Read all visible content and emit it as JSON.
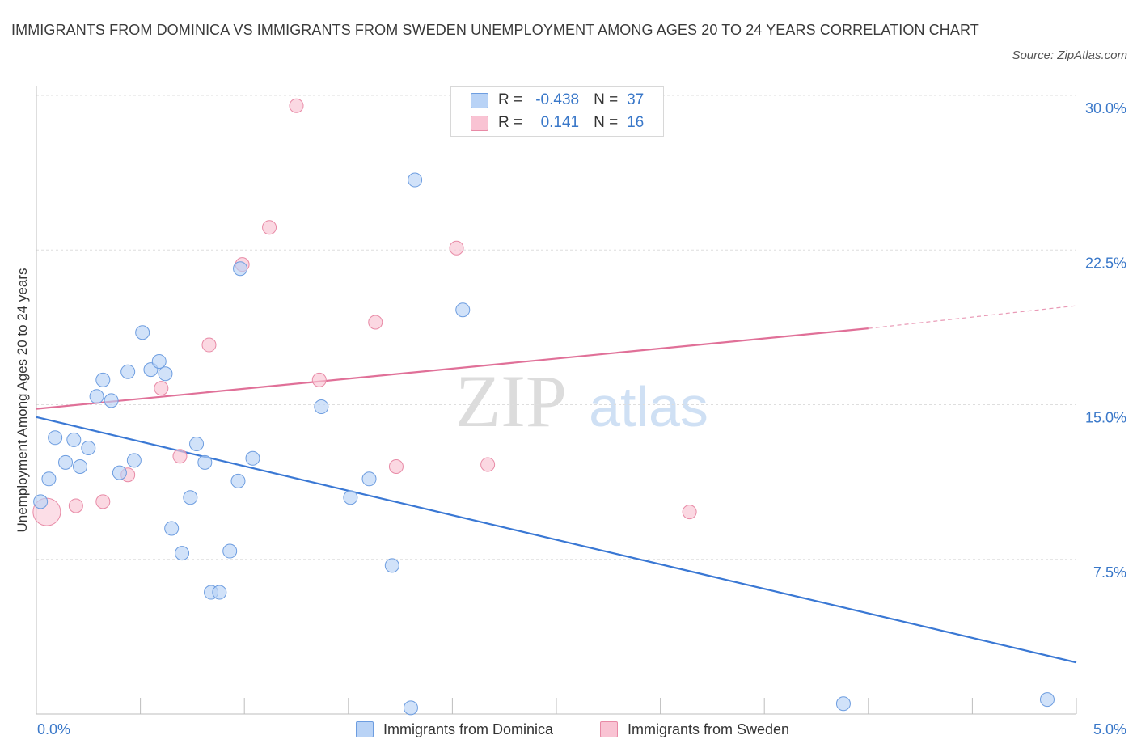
{
  "title": "IMMIGRANTS FROM DOMINICA VS IMMIGRANTS FROM SWEDEN UNEMPLOYMENT AMONG AGES 20 TO 24 YEARS CORRELATION CHART",
  "source": "Source: ZipAtlas.com",
  "watermark": {
    "zip": "ZIP",
    "atlas": "atlas"
  },
  "legend": {
    "r_label": "R =",
    "n_label": "N =",
    "series": [
      {
        "name": "Immigrants from Dominica",
        "r": "-0.438",
        "n": "37",
        "fill": "#b9d3f6",
        "stroke": "#6d9de0"
      },
      {
        "name": "Immigrants from Sweden",
        "r": "0.141",
        "n": "16",
        "fill": "#f9c3d3",
        "stroke": "#e88aa6"
      }
    ]
  },
  "chart_data": {
    "type": "scatter",
    "title": "IMMIGRANTS FROM DOMINICA VS IMMIGRANTS FROM SWEDEN UNEMPLOYMENT AMONG AGES 20 TO 24 YEARS CORRELATION CHART",
    "xlabel": "",
    "ylabel": "Unemployment Among Ages 20 to 24 years",
    "xlim": [
      0,
      5
    ],
    "ylim": [
      0,
      30
    ],
    "x_tick_labels": [
      "0.0%",
      "5.0%"
    ],
    "y_ticks": [
      7.5,
      15,
      22.5,
      30
    ],
    "y_tick_labels": [
      "7.5%",
      "15.0%",
      "22.5%",
      "30.0%"
    ],
    "grid": true,
    "colors": {
      "dominica": "#3a78d4",
      "sweden": "#e07098",
      "axis_text": "#3a78c9"
    },
    "series": [
      {
        "name": "Immigrants from Dominica",
        "points": [
          [
            0.02,
            10.3
          ],
          [
            0.06,
            11.4
          ],
          [
            0.09,
            13.4
          ],
          [
            0.14,
            12.2
          ],
          [
            0.18,
            13.3
          ],
          [
            0.21,
            12.0
          ],
          [
            0.25,
            12.9
          ],
          [
            0.29,
            15.4
          ],
          [
            0.32,
            16.2
          ],
          [
            0.36,
            15.2
          ],
          [
            0.4,
            11.7
          ],
          [
            0.44,
            16.6
          ],
          [
            0.47,
            12.3
          ],
          [
            0.51,
            18.5
          ],
          [
            0.55,
            16.7
          ],
          [
            0.59,
            17.1
          ],
          [
            0.62,
            16.5
          ],
          [
            0.65,
            9.0
          ],
          [
            0.7,
            7.8
          ],
          [
            0.74,
            10.5
          ],
          [
            0.77,
            13.1
          ],
          [
            0.81,
            12.2
          ],
          [
            0.84,
            5.9
          ],
          [
            0.88,
            5.9
          ],
          [
            0.93,
            7.9
          ],
          [
            0.97,
            11.3
          ],
          [
            1.04,
            12.4
          ],
          [
            0.98,
            21.6
          ],
          [
            1.37,
            14.9
          ],
          [
            1.51,
            10.5
          ],
          [
            1.6,
            11.4
          ],
          [
            1.71,
            7.2
          ],
          [
            1.8,
            0.3
          ],
          [
            1.82,
            25.9
          ],
          [
            2.05,
            19.6
          ],
          [
            3.88,
            0.5
          ],
          [
            4.86,
            0.7
          ]
        ],
        "trend": {
          "x": [
            0,
            5
          ],
          "y": [
            14.4,
            2.5
          ]
        }
      },
      {
        "name": "Immigrants from Sweden",
        "points": [
          [
            0.05,
            9.8
          ],
          [
            0.19,
            10.1
          ],
          [
            0.32,
            10.3
          ],
          [
            0.44,
            11.6
          ],
          [
            0.6,
            15.8
          ],
          [
            0.69,
            12.5
          ],
          [
            0.83,
            17.9
          ],
          [
            0.99,
            21.8
          ],
          [
            1.12,
            23.6
          ],
          [
            1.25,
            29.5
          ],
          [
            1.36,
            16.2
          ],
          [
            1.63,
            19.0
          ],
          [
            1.73,
            12.0
          ],
          [
            2.02,
            22.6
          ],
          [
            2.17,
            12.1
          ],
          [
            3.14,
            9.8
          ]
        ],
        "trend": {
          "x": [
            0,
            4
          ],
          "y": [
            14.8,
            18.7
          ]
        },
        "trend_dashed": {
          "x": [
            4,
            5
          ],
          "y": [
            18.7,
            19.8
          ]
        }
      }
    ]
  }
}
